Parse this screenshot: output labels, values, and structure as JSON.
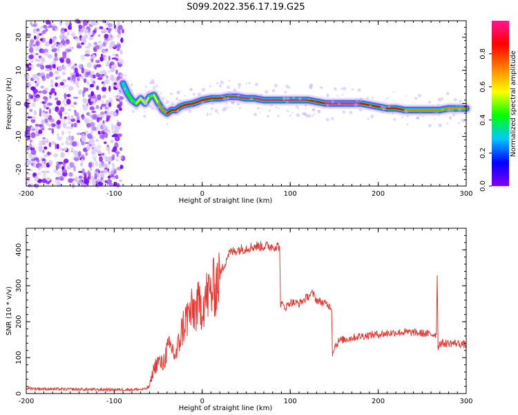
{
  "title": "S099.2022.356.17.19.G25",
  "chart_data": [
    {
      "type": "heatmap",
      "xlabel": "Height of straight line (km)",
      "ylabel": "Frequency (Hz)",
      "xlim": [
        -200,
        300
      ],
      "ylim": [
        -25,
        25
      ],
      "xticks": [
        -200,
        -100,
        0,
        100,
        200,
        300
      ],
      "yticks": [
        -20,
        -10,
        0,
        10,
        20
      ],
      "colorbar": {
        "label": "Normalized spectral amplitude",
        "range": [
          0,
          1
        ],
        "ticks": [
          0.0,
          0.2,
          0.4,
          0.6,
          0.8
        ],
        "colormap": [
          "#ffffff",
          "#8000ff",
          "#0000ff",
          "#00c8ff",
          "#00ff00",
          "#ffff00",
          "#ff8000",
          "#ff0000",
          "#ff1493"
        ]
      },
      "noise_region_x": [
        -200,
        -90
      ],
      "ridge": {
        "x": [
          -90,
          -85,
          -80,
          -75,
          -70,
          -65,
          -60,
          -55,
          -50,
          -45,
          -40,
          -35,
          -30,
          -25,
          -20,
          -10,
          0,
          10,
          20,
          30,
          40,
          50,
          60,
          70,
          80,
          90,
          100,
          110,
          120,
          130,
          140,
          150,
          160,
          170,
          180,
          190,
          200,
          210,
          220,
          230,
          240,
          250,
          260,
          270,
          280,
          290,
          300
        ],
        "freq": [
          6,
          3,
          1,
          0,
          1.5,
          0,
          2,
          2.5,
          0,
          -2,
          -3,
          -2,
          -2,
          -1,
          -0.5,
          0,
          1,
          1.5,
          1.5,
          2,
          2,
          1.5,
          1.5,
          1,
          1,
          1,
          1,
          1,
          1,
          0.5,
          0,
          0,
          0,
          0,
          0,
          -0.5,
          -1,
          -1.5,
          -1.5,
          -2,
          -2,
          -2,
          -2,
          -2,
          -1.5,
          -1.5,
          -1.5
        ],
        "amplitude": [
          0.3,
          0.4,
          0.5,
          0.6,
          0.6,
          0.7,
          0.6,
          0.5,
          0.7,
          0.7,
          0.8,
          0.9,
          0.9,
          0.9,
          0.9,
          0.8,
          0.9,
          0.9,
          0.9,
          0.95,
          0.95,
          0.95,
          0.95,
          0.95,
          0.95,
          0.95,
          0.95,
          0.95,
          0.95,
          0.9,
          0.95,
          0.95,
          0.95,
          0.95,
          0.95,
          0.9,
          0.9,
          0.9,
          0.9,
          0.8,
          0.8,
          0.8,
          0.8,
          0.8,
          0.8,
          0.8,
          0.8
        ]
      }
    },
    {
      "type": "line",
      "xlabel": "Height of straight line (km)",
      "ylabel": "SNR (10 * v/v)",
      "xlim": [
        -200,
        300
      ],
      "ylim": [
        0,
        460
      ],
      "xticks": [
        -200,
        -100,
        0,
        100,
        200,
        300
      ],
      "yticks": [
        0,
        100,
        200,
        300,
        400
      ],
      "color": "#e8352e",
      "series": [
        {
          "x": [
            -200,
            -180,
            -160,
            -140,
            -120,
            -100,
            -80,
            -65,
            -60,
            -55,
            -50,
            -45,
            -40,
            -35,
            -30,
            -25,
            -20,
            -15,
            -10,
            -5,
            0,
            5,
            10,
            15,
            20,
            25,
            30,
            40,
            50,
            60,
            70,
            80,
            88,
            89,
            95,
            100,
            110,
            120,
            125,
            130,
            140,
            147,
            148,
            150,
            155,
            160,
            180,
            200,
            220,
            240,
            260,
            266,
            267,
            268,
            270,
            280,
            290,
            300
          ],
          "y": [
            15,
            13,
            12,
            12,
            11,
            11,
            11,
            12,
            20,
            70,
            90,
            80,
            120,
            130,
            100,
            160,
            200,
            220,
            230,
            240,
            250,
            270,
            280,
            300,
            330,
            360,
            390,
            400,
            405,
            410,
            410,
            410,
            410,
            250,
            240,
            255,
            250,
            270,
            280,
            260,
            250,
            240,
            110,
            130,
            145,
            150,
            160,
            165,
            170,
            170,
            165,
            165,
            330,
            130,
            140,
            140,
            140,
            135
          ]
        }
      ]
    }
  ]
}
